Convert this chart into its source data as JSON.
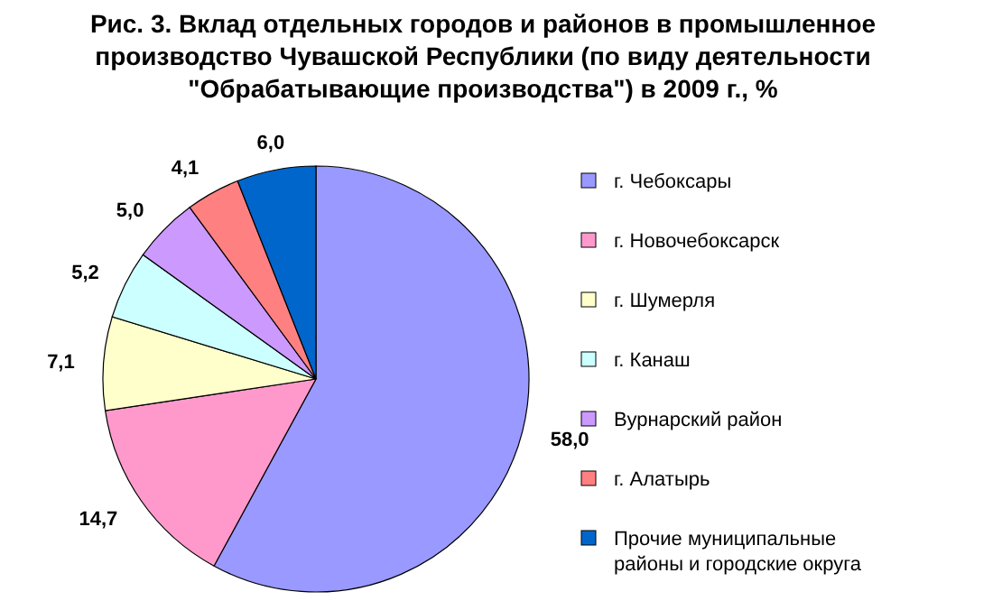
{
  "chart_data": {
    "type": "pie",
    "title": "Рис. 3. Вклад отдельных городов и районов в промышленное производство Чувашской Республики (по виду деятельности \"Обрабатывающие производства\") в 2009 г., %",
    "categories": [
      "г. Чебоксары",
      "г. Новочебоксарск",
      "г. Шумерля",
      "г. Канаш",
      "Вурнарский район",
      "г. Алатырь",
      "Прочие муниципальные районы и городские округа"
    ],
    "values": [
      58.0,
      14.7,
      7.1,
      5.2,
      5.0,
      4.1,
      6.0
    ],
    "colors": [
      "#9999ff",
      "#ff99cc",
      "#ffffcc",
      "#ccffff",
      "#cc99ff",
      "#ff8080",
      "#0066cc"
    ],
    "value_labels": [
      "58,0",
      "14,7",
      "7,1",
      "5,2",
      "5,0",
      "4,1",
      "6,0"
    ],
    "legend": "right"
  }
}
